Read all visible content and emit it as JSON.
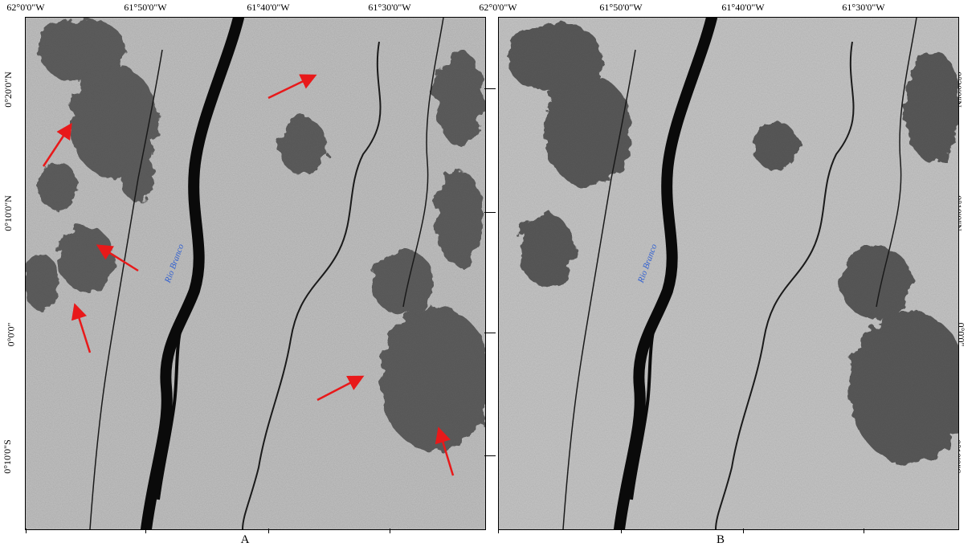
{
  "top_longitude_labels": [
    "62°0'0\"W",
    "61°50'0\"W",
    "61°40'0\"W",
    "61°30'0\"W"
  ],
  "top_longitude_label_right_panel_first": "62°0'0\"W",
  "latitude_labels": [
    "0°20'0\"N",
    "0°10'0\"N",
    "0°0'0\"",
    "0°10'0\"S"
  ],
  "river_label": "Rio Branco",
  "panel_labels": [
    "A",
    "B"
  ],
  "colors": {
    "background": "#ffffff",
    "sar_gray": "#bcbcbc",
    "water": "#0a0a0a",
    "arrow": "#e8191a",
    "river_label": "#2f5fd1"
  },
  "annotations": {
    "arrow_count_panel_a": 6
  }
}
